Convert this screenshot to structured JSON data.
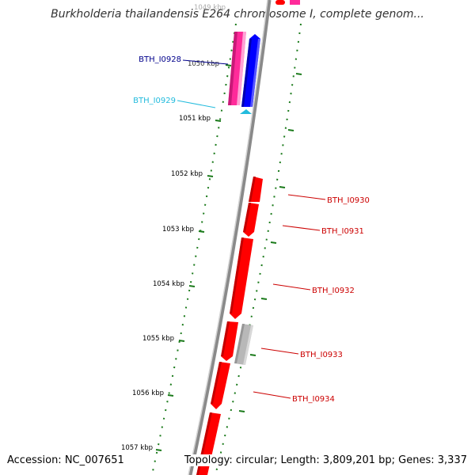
{
  "title": "Burkholderia thailandensis E264 chromosome I, complete genom...",
  "accession": "Accession: NC_007651",
  "topology": "Topology: circular; Length: 3,809,201 bp; Genes: 3,337",
  "colors": {
    "backbone": "#8a8a8a",
    "tick": "#1a7a1a",
    "red_gene": "#ff0000",
    "gray_gene": "#b8b8b8",
    "blue_gene": "#0000ff",
    "pink_gene": "#ff2a9a",
    "navy_label": "#00008b",
    "cyan_label": "#22bbdd",
    "red_label": "#cc0000"
  },
  "ticks": [
    {
      "label": "1049 kbp"
    },
    {
      "label": "1050 kbp"
    },
    {
      "label": "1051 kbp"
    },
    {
      "label": "1052 kbp"
    },
    {
      "label": "1053 kbp"
    },
    {
      "label": "1054 kbp"
    },
    {
      "label": "1055 kbp"
    },
    {
      "label": "1056 kbp"
    },
    {
      "label": "1057 kbp"
    }
  ],
  "genes": [
    {
      "label": "BTH_I0928",
      "color": "#00008b"
    },
    {
      "label": "BTH_I0929",
      "color": "#22bbdd"
    },
    {
      "label": "BTH_I0930",
      "color": "#cc0000"
    },
    {
      "label": "BTH_I0931",
      "color": "#cc0000"
    },
    {
      "label": "BTH_I0932",
      "color": "#cc0000"
    },
    {
      "label": "BTH_I0933",
      "color": "#cc0000"
    },
    {
      "label": "BTH_I0934",
      "color": "#cc0000"
    }
  ]
}
